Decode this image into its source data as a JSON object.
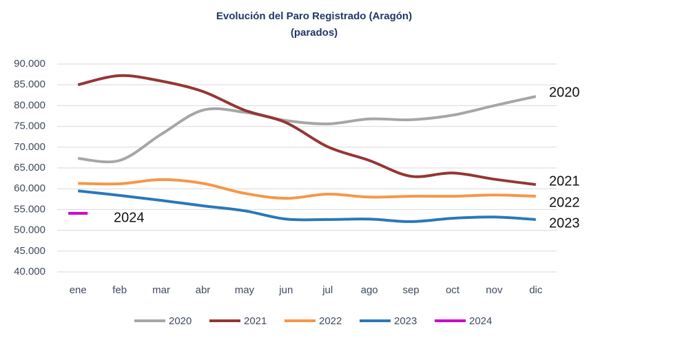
{
  "chart_data": {
    "type": "line",
    "title": "Evolución del Paro Registrado (Aragón)",
    "subtitle": "(parados)",
    "categories": [
      "ene",
      "feb",
      "mar",
      "abr",
      "may",
      "jun",
      "jul",
      "ago",
      "sep",
      "oct",
      "nov",
      "dic"
    ],
    "series": [
      {
        "name": "2020",
        "color": "#a6a6a6",
        "values": [
          67300,
          66800,
          73100,
          78900,
          78400,
          76400,
          75600,
          76800,
          76600,
          77700,
          80000,
          82200
        ]
      },
      {
        "name": "2021",
        "color": "#943634",
        "values": [
          85000,
          87200,
          85900,
          83400,
          78900,
          75900,
          70100,
          66800,
          63000,
          63800,
          62300,
          61000
        ]
      },
      {
        "name": "2022",
        "color": "#f79646",
        "values": [
          61300,
          61200,
          62200,
          61300,
          58900,
          57700,
          58700,
          58000,
          58200,
          58200,
          58500,
          58200
        ]
      },
      {
        "name": "2023",
        "color": "#2a78b8",
        "values": [
          59500,
          58400,
          57200,
          55900,
          54700,
          52700,
          52600,
          52700,
          52100,
          52900,
          53200,
          52600
        ]
      },
      {
        "name": "2024",
        "color": "#cc00cc",
        "values": [
          54100,
          null,
          null,
          null,
          null,
          null,
          null,
          null,
          null,
          null,
          null,
          null
        ]
      }
    ],
    "ylim": [
      40000,
      90000
    ],
    "yticks": [
      {
        "value": 40000,
        "label": "40.000"
      },
      {
        "value": 45000,
        "label": "45.000"
      },
      {
        "value": 50000,
        "label": "50.000"
      },
      {
        "value": 55000,
        "label": "55.000"
      },
      {
        "value": 60000,
        "label": "60.000"
      },
      {
        "value": 65000,
        "label": "65.000"
      },
      {
        "value": 70000,
        "label": "70.000"
      },
      {
        "value": 75000,
        "label": "75.000"
      },
      {
        "value": 80000,
        "label": "80.000"
      },
      {
        "value": 85000,
        "label": "85.000"
      },
      {
        "value": 90000,
        "label": "90.000"
      }
    ],
    "grid": true,
    "legend": "bottom"
  }
}
